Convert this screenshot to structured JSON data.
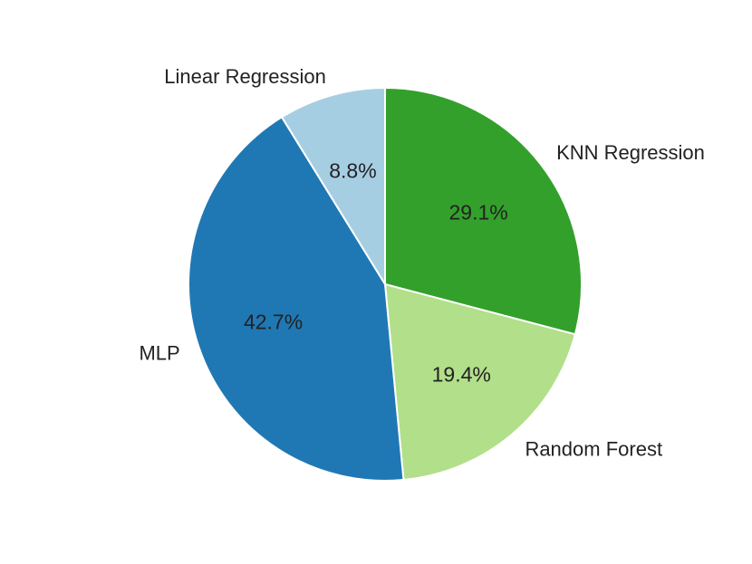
{
  "chart_data": {
    "type": "pie",
    "title": "",
    "start_angle_deg": 90,
    "direction": "clockwise",
    "slices": [
      {
        "label": "KNN Regression",
        "value": 29.1,
        "pct_text": "29.1%",
        "color": "#33a02c"
      },
      {
        "label": "Random Forest",
        "value": 19.4,
        "pct_text": "19.4%",
        "color": "#b2df8a"
      },
      {
        "label": "MLP",
        "value": 42.7,
        "pct_text": "42.7%",
        "color": "#1f78b4"
      },
      {
        "label": "Linear Regression",
        "value": 8.8,
        "pct_text": "8.8%",
        "color": "#a6cee3"
      }
    ],
    "legend": false
  }
}
